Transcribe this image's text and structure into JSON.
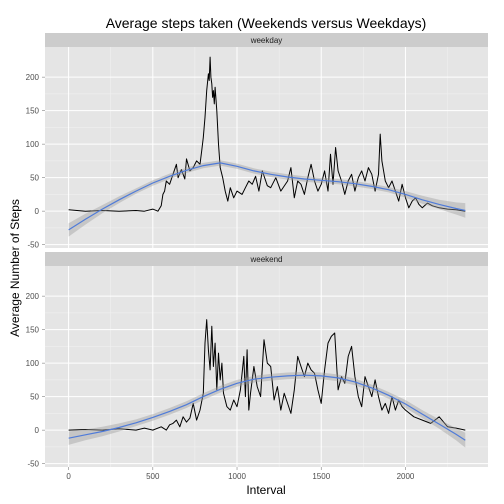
{
  "chart_data": {
    "type": "line",
    "title": "Average steps taken (Weekends versus Weekdays)",
    "xlabel": "Interval",
    "ylabel": "Average Number of Steps",
    "xlim": [
      -140,
      2490
    ],
    "ylim": [
      -55,
      245
    ],
    "x_ticks": [
      0,
      500,
      1000,
      1500,
      2000
    ],
    "y_ticks": [
      -50,
      0,
      50,
      100,
      150,
      200
    ],
    "grid": true,
    "legend": "none",
    "panels": [
      {
        "strip": "weekday",
        "series": [
          {
            "role": "average steps",
            "color": "#000000",
            "x": [
              0,
              100,
              200,
              300,
              400,
              450,
              500,
              530,
              550,
              560,
              570,
              580,
              600,
              620,
              640,
              650,
              670,
              690,
              700,
              720,
              740,
              760,
              780,
              790,
              800,
              810,
              820,
              830,
              835,
              840,
              845,
              850,
              855,
              860,
              865,
              870,
              880,
              890,
              900,
              915,
              930,
              945,
              960,
              980,
              1000,
              1030,
              1050,
              1070,
              1090,
              1110,
              1130,
              1150,
              1180,
              1200,
              1230,
              1260,
              1300,
              1320,
              1340,
              1360,
              1380,
              1400,
              1420,
              1440,
              1460,
              1480,
              1500,
              1520,
              1540,
              1555,
              1570,
              1585,
              1600,
              1620,
              1640,
              1660,
              1680,
              1700,
              1720,
              1740,
              1760,
              1780,
              1800,
              1820,
              1840,
              1850,
              1860,
              1870,
              1880,
              1900,
              1920,
              1940,
              1960,
              1980,
              2000,
              2020,
              2040,
              2060,
              2080,
              2100,
              2130,
              2160,
              2200,
              2250,
              2300,
              2355
            ],
            "y": [
              2,
              0,
              1,
              0,
              1,
              0,
              3,
              0,
              8,
              25,
              30,
              45,
              40,
              55,
              70,
              50,
              62,
              48,
              78,
              60,
              65,
              75,
              70,
              90,
              110,
              140,
              180,
              205,
              195,
              230,
              200,
              190,
              170,
              180,
              160,
              185,
              150,
              100,
              65,
              50,
              30,
              15,
              35,
              20,
              30,
              25,
              35,
              45,
              40,
              52,
              30,
              60,
              38,
              35,
              50,
              30,
              45,
              65,
              20,
              45,
              40,
              25,
              50,
              70,
              45,
              30,
              40,
              60,
              30,
              85,
              40,
              95,
              60,
              45,
              25,
              45,
              55,
              30,
              50,
              60,
              45,
              65,
              55,
              30,
              55,
              115,
              75,
              60,
              45,
              35,
              45,
              30,
              15,
              40,
              20,
              5,
              15,
              20,
              10,
              5,
              12,
              8,
              5,
              3,
              2,
              0
            ]
          },
          {
            "role": "smoothed trend",
            "color": "#4f7bd9",
            "x": [
              0,
              100,
              200,
              300,
              400,
              500,
              600,
              700,
              800,
              900,
              1000,
              1100,
              1200,
              1300,
              1400,
              1500,
              1600,
              1700,
              1800,
              1900,
              2000,
              2100,
              2200,
              2300,
              2355
            ],
            "y": [
              -28,
              -12,
              3,
              17,
              30,
              42,
              52,
              61,
              68,
              72,
              67,
              60,
              55,
              51,
              48,
              46,
              44,
              41,
              37,
              32,
              25,
              17,
              10,
              4,
              1
            ],
            "band_halfwidth": [
              10,
              8,
              6,
              5,
              4,
              4,
              4,
              4,
              4,
              4,
              4,
              4,
              4,
              4,
              4,
              4,
              4,
              4,
              4,
              4,
              5,
              6,
              7,
              9,
              11
            ]
          }
        ]
      },
      {
        "strip": "weekend",
        "series": [
          {
            "role": "average steps",
            "color": "#000000",
            "x": [
              0,
              100,
              200,
              300,
              400,
              450,
              500,
              550,
              580,
              600,
              620,
              640,
              660,
              680,
              700,
              720,
              740,
              760,
              780,
              800,
              810,
              820,
              830,
              840,
              850,
              860,
              870,
              880,
              890,
              900,
              910,
              920,
              940,
              960,
              980,
              1000,
              1020,
              1040,
              1050,
              1060,
              1070,
              1080,
              1100,
              1120,
              1140,
              1160,
              1180,
              1200,
              1220,
              1240,
              1260,
              1280,
              1300,
              1320,
              1340,
              1360,
              1380,
              1400,
              1420,
              1440,
              1460,
              1480,
              1500,
              1520,
              1540,
              1560,
              1580,
              1600,
              1620,
              1640,
              1660,
              1680,
              1700,
              1720,
              1740,
              1760,
              1780,
              1800,
              1820,
              1840,
              1860,
              1880,
              1900,
              1920,
              1940,
              1960,
              1980,
              2000,
              2050,
              2100,
              2150,
              2200,
              2250,
              2300,
              2355
            ],
            "y": [
              0,
              1,
              0,
              2,
              0,
              3,
              0,
              5,
              0,
              8,
              10,
              15,
              5,
              20,
              12,
              18,
              40,
              15,
              30,
              55,
              130,
              165,
              120,
              90,
              155,
              95,
              130,
              60,
              115,
              75,
              100,
              55,
              35,
              30,
              45,
              35,
              60,
              110,
              50,
              120,
              30,
              55,
              95,
              65,
              50,
              135,
              100,
              95,
              45,
              65,
              30,
              55,
              40,
              25,
              60,
              110,
              95,
              80,
              100,
              90,
              85,
              60,
              40,
              90,
              130,
              140,
              145,
              60,
              80,
              70,
              110,
              125,
              80,
              50,
              35,
              80,
              65,
              50,
              75,
              50,
              30,
              40,
              25,
              50,
              30,
              45,
              35,
              30,
              20,
              15,
              10,
              20,
              5,
              3,
              0
            ]
          },
          {
            "role": "smoothed trend",
            "color": "#4f7bd9",
            "x": [
              0,
              100,
              200,
              300,
              400,
              500,
              600,
              700,
              800,
              900,
              1000,
              1100,
              1200,
              1300,
              1400,
              1500,
              1600,
              1700,
              1800,
              1900,
              2000,
              2100,
              2200,
              2300,
              2355
            ],
            "y": [
              -12,
              -7,
              -2,
              4,
              11,
              19,
              28,
              38,
              50,
              61,
              70,
              76,
              79,
              81,
              82,
              81,
              78,
              72,
              63,
              52,
              39,
              24,
              9,
              -6,
              -15
            ],
            "band_halfwidth": [
              10,
              8,
              7,
              6,
              5,
              5,
              5,
              5,
              5,
              5,
              5,
              5,
              5,
              5,
              5,
              5,
              5,
              5,
              5,
              5,
              6,
              6,
              7,
              9,
              11
            ]
          }
        ]
      }
    ]
  }
}
